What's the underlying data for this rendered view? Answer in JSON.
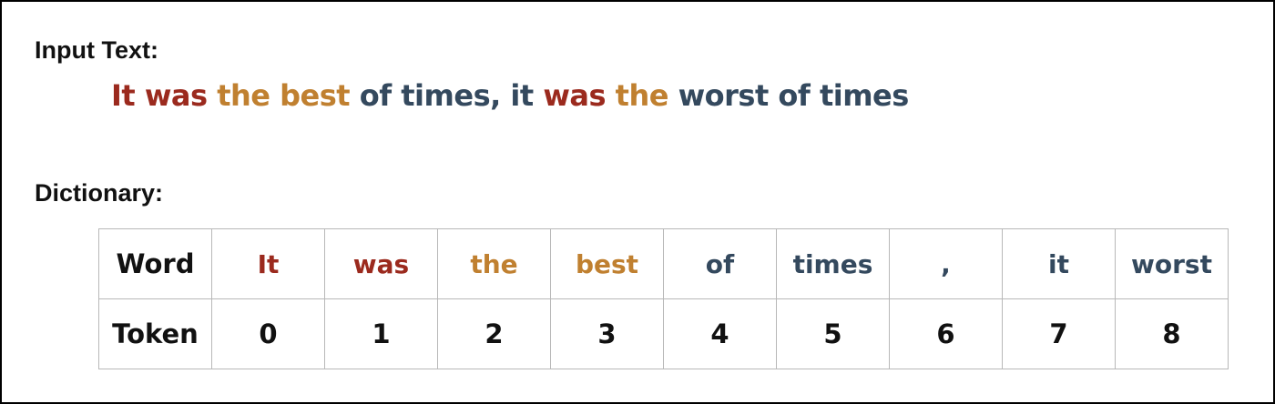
{
  "input_label": "Input Text:",
  "sentence": [
    {
      "text": "It",
      "color": "#9b2a1e"
    },
    {
      "text": "was",
      "color": "#9b2a1e"
    },
    {
      "text": "the",
      "color": "#c08030"
    },
    {
      "text": "best",
      "color": "#c08030"
    },
    {
      "text": "of",
      "color": "#34495e"
    },
    {
      "text": "times,",
      "color": "#34495e"
    },
    {
      "text": "it",
      "color": "#34495e"
    },
    {
      "text": "was",
      "color": "#9b2a1e"
    },
    {
      "text": "the",
      "color": "#c08030"
    },
    {
      "text": "worst",
      "color": "#34495e"
    },
    {
      "text": "of",
      "color": "#34495e"
    },
    {
      "text": "times",
      "color": "#34495e"
    }
  ],
  "dictionary_label": "Dictionary:",
  "table": {
    "word_header": "Word",
    "token_header": "Token",
    "entries": [
      {
        "word": "It",
        "token": "0",
        "color": "#9b2a1e"
      },
      {
        "word": "was",
        "token": "1",
        "color": "#9b2a1e"
      },
      {
        "word": "the",
        "token": "2",
        "color": "#c08030"
      },
      {
        "word": "best",
        "token": "3",
        "color": "#c08030"
      },
      {
        "word": "of",
        "token": "4",
        "color": "#34495e"
      },
      {
        "word": "times",
        "token": "5",
        "color": "#34495e"
      },
      {
        "word": ",",
        "token": "6",
        "color": "#34495e"
      },
      {
        "word": "it",
        "token": "7",
        "color": "#34495e"
      },
      {
        "word": "worst",
        "token": "8",
        "color": "#34495e"
      }
    ]
  }
}
